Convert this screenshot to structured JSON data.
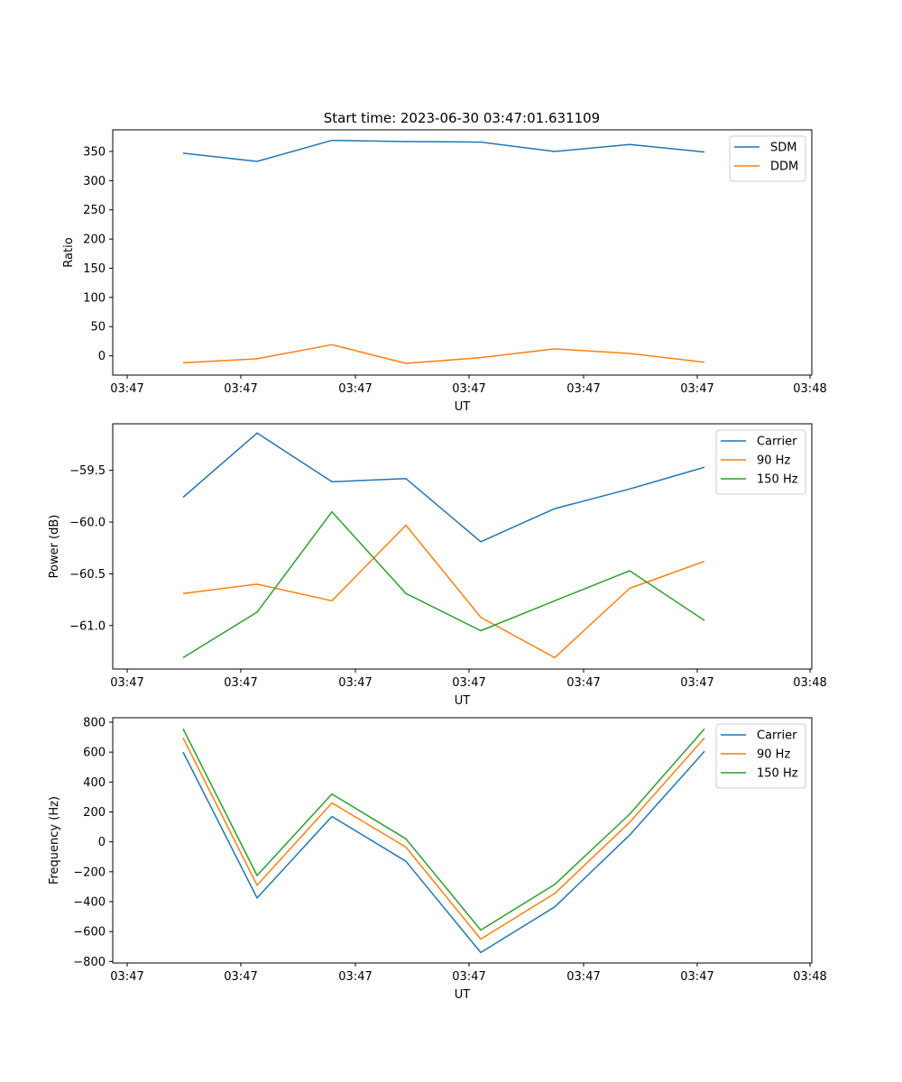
{
  "title": "Start time: 2023-06-30 03:47:01.631109",
  "x_tick_labels": [
    "03:47",
    "03:47",
    "03:47",
    "03:47",
    "03:47",
    "03:47",
    "03:48"
  ],
  "chart_data": [
    {
      "type": "line",
      "title": "Start time: 2023-06-30 03:47:01.631109",
      "xlabel": "UT",
      "ylabel": "Ratio",
      "ylim": [
        -33,
        387
      ],
      "yticks": [
        0,
        50,
        100,
        150,
        200,
        250,
        300,
        350
      ],
      "ytick_labels": [
        "0",
        "50",
        "100",
        "150",
        "200",
        "250",
        "300",
        "350"
      ],
      "x": [
        1,
        2,
        3,
        4,
        5,
        6,
        7,
        8
      ],
      "grid": false,
      "legend": "top-right",
      "series": [
        {
          "name": "SDM",
          "color": "#1f77b4",
          "values": [
            347,
            333,
            369,
            367,
            366,
            350,
            362,
            349
          ]
        },
        {
          "name": "DDM",
          "color": "#ff7f0e",
          "values": [
            -12,
            -5,
            19,
            -13,
            -3,
            12,
            4,
            -11
          ]
        }
      ]
    },
    {
      "type": "line",
      "xlabel": "UT",
      "ylabel": "Power (dB)",
      "ylim": [
        -61.42,
        -59.05
      ],
      "yticks": [
        -61.0,
        -60.5,
        -60.0,
        -59.5
      ],
      "ytick_labels": [
        "−61.0",
        "−60.5",
        "−60.0",
        "−59.5"
      ],
      "x": [
        1,
        2,
        3,
        4,
        5,
        6,
        7,
        8
      ],
      "grid": false,
      "legend": "top-right",
      "series": [
        {
          "name": "Carrier",
          "color": "#1f77b4",
          "values": [
            -59.76,
            -59.14,
            -59.61,
            -59.58,
            -60.19,
            -59.87,
            -59.68,
            -59.47
          ]
        },
        {
          "name": "90 Hz",
          "color": "#ff7f0e",
          "values": [
            -60.69,
            -60.6,
            -60.76,
            -60.03,
            -60.92,
            -61.31,
            -60.64,
            -60.38
          ]
        },
        {
          "name": "150 Hz",
          "color": "#2ca02c",
          "values": [
            -61.31,
            -60.87,
            -59.9,
            -60.69,
            -61.05,
            -60.76,
            -60.47,
            -60.95
          ]
        }
      ]
    },
    {
      "type": "line",
      "xlabel": "UT",
      "ylabel": "Frequency (Hz)",
      "ylim": [
        -810,
        830
      ],
      "yticks": [
        -800,
        -600,
        -400,
        -200,
        0,
        200,
        400,
        600,
        800
      ],
      "ytick_labels": [
        "−800",
        "−600",
        "−400",
        "−200",
        "0",
        "200",
        "400",
        "600",
        "800"
      ],
      "x": [
        1,
        2,
        3,
        4,
        5,
        6,
        7,
        8
      ],
      "grid": false,
      "legend": "top-right",
      "series": [
        {
          "name": "Carrier",
          "color": "#1f77b4",
          "values": [
            600,
            -375,
            170,
            -130,
            -740,
            -435,
            45,
            605
          ]
        },
        {
          "name": "90 Hz",
          "color": "#ff7f0e",
          "values": [
            695,
            -290,
            260,
            -35,
            -650,
            -345,
            130,
            695
          ]
        },
        {
          "name": "150 Hz",
          "color": "#2ca02c",
          "values": [
            755,
            -225,
            320,
            20,
            -590,
            -285,
            185,
            755
          ]
        }
      ]
    }
  ]
}
